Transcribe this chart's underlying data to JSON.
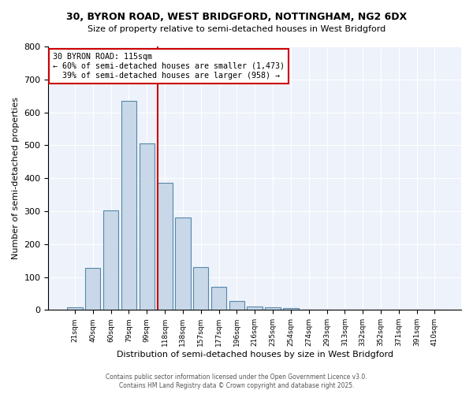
{
  "title_line1": "30, BYRON ROAD, WEST BRIDGFORD, NOTTINGHAM, NG2 6DX",
  "title_line2": "Size of property relative to semi-detached houses in West Bridgford",
  "xlabel": "Distribution of semi-detached houses by size in West Bridgford",
  "ylabel": "Number of semi-detached properties",
  "footer_line1": "Contains HM Land Registry data © Crown copyright and database right 2025.",
  "footer_line2": "Contains public sector information licensed under the Open Government Licence v3.0.",
  "bin_labels": [
    "21sqm",
    "40sqm",
    "60sqm",
    "79sqm",
    "99sqm",
    "118sqm",
    "138sqm",
    "157sqm",
    "177sqm",
    "196sqm",
    "216sqm",
    "235sqm",
    "254sqm",
    "274sqm",
    "293sqm",
    "313sqm",
    "332sqm",
    "352sqm",
    "371sqm",
    "391sqm",
    "410sqm"
  ],
  "bar_values": [
    8,
    128,
    302,
    635,
    505,
    385,
    280,
    130,
    70,
    27,
    10,
    8,
    6,
    0,
    0,
    0,
    0,
    0,
    0,
    0,
    0
  ],
  "property_label": "30 BYRON ROAD: 115sqm",
  "pct_smaller": 60,
  "pct_larger": 39,
  "count_smaller": 1473,
  "count_larger": 958,
  "bar_color": "#c8d8e8",
  "bar_edge_color": "#5588aa",
  "vline_color": "#cc0000",
  "annotation_box_color": "#cc0000",
  "background_color": "#eef2fa",
  "ylim": [
    0,
    800
  ],
  "yticks": [
    0,
    100,
    200,
    300,
    400,
    500,
    600,
    700,
    800
  ],
  "vline_index": 4.6
}
